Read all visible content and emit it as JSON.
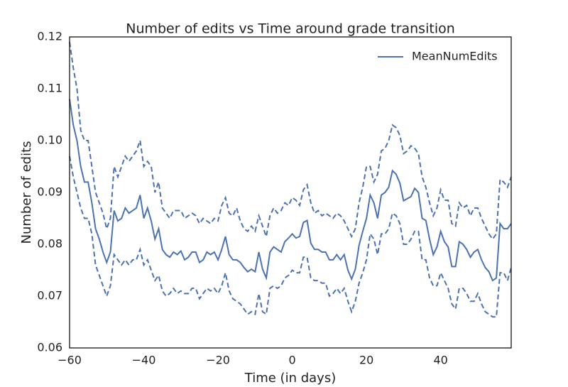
{
  "chart_data": {
    "type": "line",
    "title": "Number of edits vs Time around grade transition",
    "xlabel": "Time (in days)",
    "ylabel": "Number of edits",
    "x": [
      -60,
      -59,
      -58,
      -57,
      -56,
      -55,
      -54,
      -53,
      -52,
      -51,
      -50,
      -49,
      -48,
      -47,
      -46,
      -45,
      -44,
      -43,
      -42,
      -41,
      -40,
      -39,
      -38,
      -37,
      -36,
      -35,
      -34,
      -33,
      -32,
      -31,
      -30,
      -29,
      -28,
      -27,
      -26,
      -25,
      -24,
      -23,
      -22,
      -21,
      -20,
      -19,
      -18,
      -17,
      -16,
      -15,
      -14,
      -13,
      -12,
      -11,
      -10,
      -9,
      -8,
      -7,
      -6,
      -5,
      -4,
      -3,
      -2,
      -1,
      0,
      1,
      2,
      3,
      4,
      5,
      6,
      7,
      8,
      9,
      10,
      11,
      12,
      13,
      14,
      15,
      16,
      17,
      18,
      19,
      20,
      21,
      22,
      23,
      24,
      25,
      26,
      27,
      28,
      29,
      30,
      31,
      32,
      33,
      34,
      35,
      36,
      37,
      38,
      39,
      40,
      41,
      42,
      43,
      44,
      45,
      46,
      47,
      48,
      49,
      50,
      51,
      52,
      53,
      54,
      55,
      56,
      57,
      58,
      59
    ],
    "series": [
      {
        "name": "MeanNumEdits",
        "color": "#4c72b0",
        "values": [
          0.108,
          0.103,
          0.1,
          0.095,
          0.092,
          0.092,
          0.088,
          0.083,
          0.081,
          0.0785,
          0.0765,
          0.0785,
          0.0865,
          0.0845,
          0.085,
          0.087,
          0.086,
          0.0865,
          0.087,
          0.0895,
          0.085,
          0.087,
          0.0845,
          0.081,
          0.083,
          0.079,
          0.078,
          0.0775,
          0.0785,
          0.078,
          0.0787,
          0.077,
          0.0775,
          0.0785,
          0.0785,
          0.0765,
          0.077,
          0.0785,
          0.078,
          0.0785,
          0.077,
          0.079,
          0.0815,
          0.078,
          0.077,
          0.077,
          0.0765,
          0.0755,
          0.0747,
          0.0752,
          0.0747,
          0.0785,
          0.0752,
          0.0735,
          0.0785,
          0.0795,
          0.079,
          0.0785,
          0.0805,
          0.0812,
          0.082,
          0.0812,
          0.0815,
          0.0842,
          0.0846,
          0.0802,
          0.079,
          0.079,
          0.0785,
          0.0785,
          0.077,
          0.077,
          0.078,
          0.077,
          0.078,
          0.075,
          0.0733,
          0.0752,
          0.0798,
          0.0825,
          0.085,
          0.0895,
          0.088,
          0.085,
          0.0895,
          0.09,
          0.091,
          0.0942,
          0.0935,
          0.0918,
          0.0884,
          0.0888,
          0.0892,
          0.0908,
          0.09,
          0.085,
          0.0846,
          0.081,
          0.078,
          0.0795,
          0.0825,
          0.0805,
          0.0795,
          0.0757,
          0.0757,
          0.0805,
          0.08,
          0.079,
          0.0775,
          0.0785,
          0.079,
          0.077,
          0.0755,
          0.0747,
          0.073,
          0.0735,
          0.084,
          0.083,
          0.083,
          0.084
        ]
      },
      {
        "color": "#4c72b0",
        "dash": true,
        "values": [
          0.119,
          0.114,
          0.11,
          0.102,
          0.1,
          0.1,
          0.095,
          0.09,
          0.088,
          0.086,
          0.083,
          0.085,
          0.095,
          0.093,
          0.095,
          0.097,
          0.096,
          0.097,
          0.098,
          0.1,
          0.095,
          0.096,
          0.095,
          0.09,
          0.092,
          0.087,
          0.086,
          0.085,
          0.0865,
          0.0865,
          0.0865,
          0.085,
          0.0855,
          0.086,
          0.0855,
          0.084,
          0.085,
          0.0845,
          0.084,
          0.085,
          0.0845,
          0.0875,
          0.089,
          0.086,
          0.0855,
          0.087,
          0.0845,
          0.083,
          0.0825,
          0.0835,
          0.0825,
          0.0855,
          0.0835,
          0.0815,
          0.0855,
          0.087,
          0.086,
          0.0865,
          0.088,
          0.0875,
          0.089,
          0.0885,
          0.0875,
          0.0905,
          0.0915,
          0.088,
          0.086,
          0.0865,
          0.0855,
          0.086,
          0.0855,
          0.085,
          0.086,
          0.0855,
          0.0845,
          0.083,
          0.0815,
          0.083,
          0.088,
          0.091,
          0.095,
          0.095,
          0.092,
          0.0935,
          0.098,
          0.0985,
          0.1,
          0.103,
          0.1025,
          0.101,
          0.0975,
          0.098,
          0.099,
          0.0985,
          0.0975,
          0.093,
          0.091,
          0.088,
          0.0855,
          0.087,
          0.0905,
          0.0885,
          0.0885,
          0.084,
          0.0835,
          0.088,
          0.087,
          0.0875,
          0.0855,
          0.087,
          0.087,
          0.085,
          0.0835,
          0.082,
          0.081,
          0.082,
          0.0925,
          0.092,
          0.091,
          0.093
        ]
      },
      {
        "color": "#4c72b0",
        "dash": true,
        "values": [
          0.097,
          0.093,
          0.09,
          0.087,
          0.085,
          0.085,
          0.082,
          0.076,
          0.074,
          0.072,
          0.07,
          0.072,
          0.078,
          0.077,
          0.076,
          0.077,
          0.076,
          0.077,
          0.077,
          0.079,
          0.076,
          0.077,
          0.075,
          0.073,
          0.074,
          0.071,
          0.07,
          0.0705,
          0.0715,
          0.0705,
          0.071,
          0.0705,
          0.0705,
          0.0715,
          0.0715,
          0.0695,
          0.0705,
          0.0715,
          0.071,
          0.0715,
          0.0705,
          0.072,
          0.0745,
          0.071,
          0.0695,
          0.069,
          0.0685,
          0.0675,
          0.0665,
          0.067,
          0.0665,
          0.0705,
          0.067,
          0.0665,
          0.0715,
          0.072,
          0.0715,
          0.072,
          0.0735,
          0.074,
          0.075,
          0.0745,
          0.0745,
          0.0775,
          0.0775,
          0.0735,
          0.073,
          0.073,
          0.0725,
          0.0725,
          0.07,
          0.0705,
          0.0715,
          0.0705,
          0.0715,
          0.069,
          0.067,
          0.069,
          0.0725,
          0.0745,
          0.077,
          0.082,
          0.081,
          0.078,
          0.082,
          0.082,
          0.083,
          0.086,
          0.0855,
          0.084,
          0.08,
          0.08,
          0.081,
          0.0825,
          0.0825,
          0.077,
          0.077,
          0.0735,
          0.072,
          0.072,
          0.0745,
          0.073,
          0.0715,
          0.0685,
          0.0675,
          0.0715,
          0.0715,
          0.0705,
          0.069,
          0.069,
          0.0705,
          0.0685,
          0.067,
          0.0665,
          0.066,
          0.066,
          0.0745,
          0.0745,
          0.073,
          0.0755
        ]
      }
    ],
    "xlim": [
      -60,
      59
    ],
    "xticks": [
      {
        "value": -60,
        "label": "−60"
      },
      {
        "value": -40,
        "label": "−40"
      },
      {
        "value": -20,
        "label": "−20"
      },
      0,
      20,
      40
    ],
    "ylim": [
      0.06,
      0.12
    ],
    "yticks": [
      0.06,
      0.07,
      0.08,
      0.09,
      {
        "value": 0.1,
        "label": "0.10"
      },
      0.11,
      0.12
    ],
    "grid": false,
    "legend": "upper right"
  }
}
